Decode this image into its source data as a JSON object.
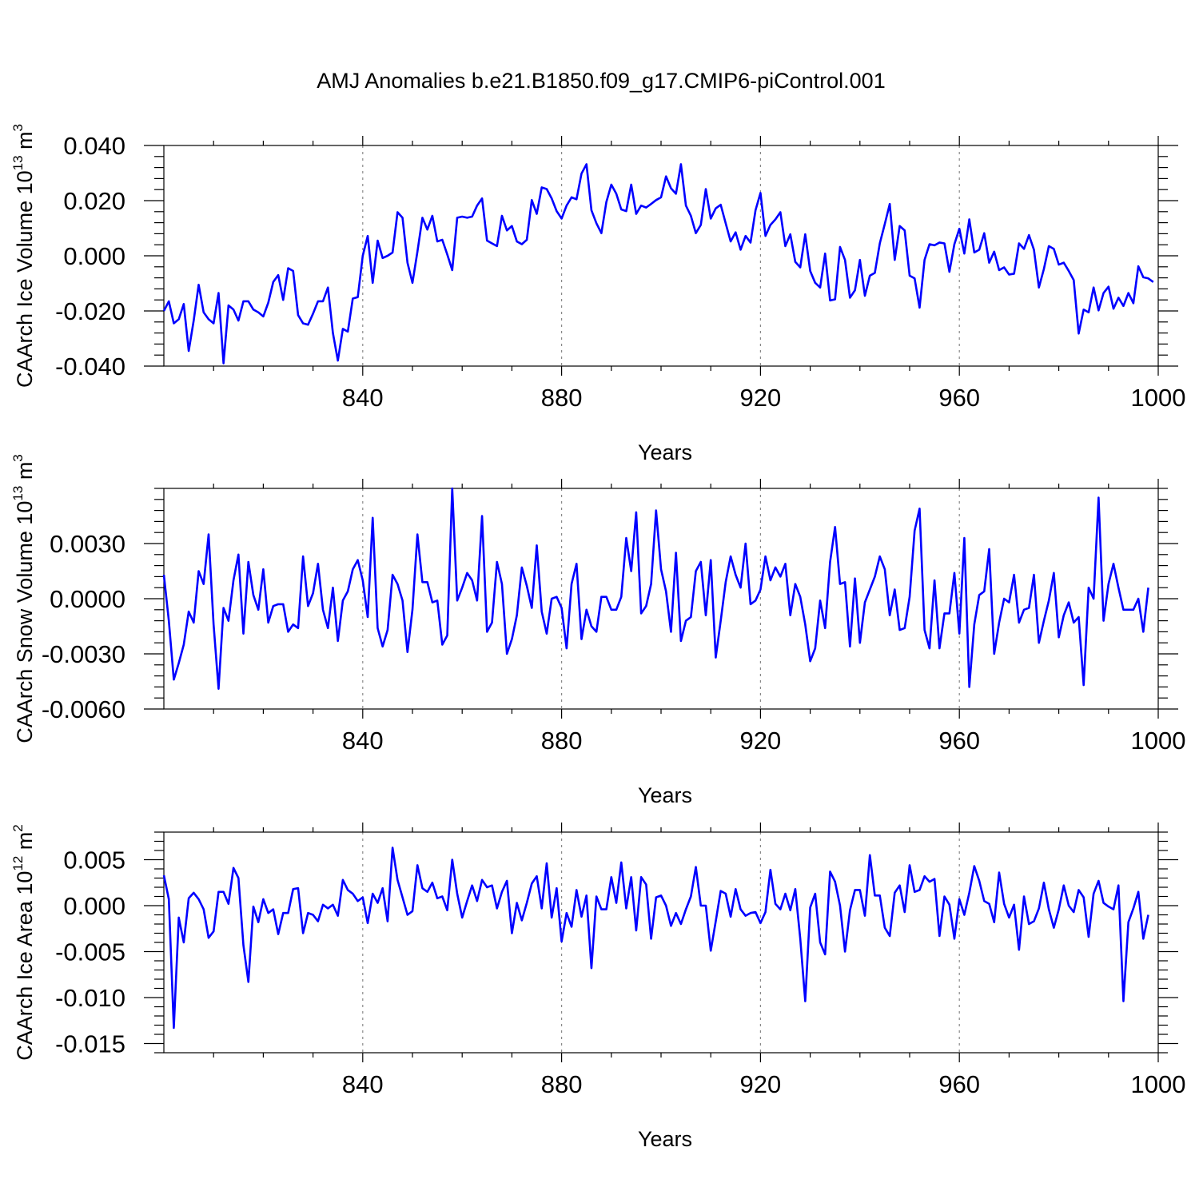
{
  "title": "AMJ Anomalies b.e21.B1850.f09_g17.CMIP6-piControl.001",
  "colors": {
    "line": "#0000ff",
    "axis": "#000000",
    "refline": "#888888"
  },
  "chart_data": [
    {
      "type": "line",
      "ylabel": "CAArch Ice Volume 10",
      "ylabel_sup": "13",
      "ylabel_unit": " m",
      "ylabel_unit_sup": "3",
      "xlabel": "Years",
      "xlim": [
        800,
        1000
      ],
      "ylim": [
        -0.04,
        0.04
      ],
      "x_ticks": [
        840,
        880,
        920,
        960,
        1000
      ],
      "x_tick_labels": [
        "840",
        "880",
        "920",
        "960",
        "1000"
      ],
      "y_ticks": [
        -0.04,
        -0.02,
        0.0,
        0.02,
        0.04
      ],
      "y_tick_labels": [
        "-0.040",
        "-0.020",
        "0.000",
        "0.020",
        "0.040"
      ],
      "ref_lines_x": [
        840,
        880,
        920,
        960
      ],
      "series": [
        {
          "x_start": 800,
          "values": [
            -0.02,
            -0.0165,
            -0.0245,
            -0.023,
            -0.0175,
            -0.0345,
            -0.0235,
            -0.0105,
            -0.0205,
            -0.023,
            -0.0245,
            -0.0135,
            -0.039,
            -0.018,
            -0.0195,
            -0.0235,
            -0.0165,
            -0.0165,
            -0.0195,
            -0.0205,
            -0.022,
            -0.017,
            -0.0095,
            -0.007,
            -0.016,
            -0.0045,
            -0.0055,
            -0.0215,
            -0.0245,
            -0.025,
            -0.021,
            -0.0165,
            -0.0165,
            -0.0115,
            -0.028,
            -0.038,
            -0.0265,
            -0.0275,
            -0.0155,
            -0.015,
            0.0,
            0.0072,
            -0.0098,
            0.0055,
            -0.0008,
            0.0,
            0.0012,
            0.0158,
            0.0138,
            -0.0025,
            -0.0098,
            0.0015,
            0.0138,
            0.0095,
            0.0145,
            0.0052,
            0.0058,
            0.0005,
            -0.0052,
            0.0138,
            0.0142,
            0.0138,
            0.0142,
            0.0182,
            0.0208,
            0.0055,
            0.0045,
            0.0035,
            0.0145,
            0.0092,
            0.0108,
            0.0052,
            0.0042,
            0.0058,
            0.0202,
            0.0152,
            0.0248,
            0.0242,
            0.0208,
            0.0162,
            0.0135,
            0.0182,
            0.0212,
            0.0205,
            0.0298,
            0.0332,
            0.0165,
            0.0118,
            0.0082,
            0.0195,
            0.0258,
            0.0225,
            0.0168,
            0.0162,
            0.0258,
            0.0152,
            0.0182,
            0.0175,
            0.0188,
            0.0202,
            0.0212,
            0.0288,
            0.0245,
            0.0225,
            0.0332,
            0.0182,
            0.0145,
            0.0082,
            0.0112,
            0.0242,
            0.0135,
            0.0172,
            0.0185,
            0.0118,
            0.0052,
            0.0085,
            0.0022,
            0.0072,
            0.0048,
            0.0165,
            0.0228,
            0.0072,
            0.0112,
            0.0132,
            0.0158,
            0.0035,
            0.0078,
            -0.0022,
            -0.0042,
            0.0078,
            -0.0055,
            -0.0098,
            -0.0115,
            0.0008,
            -0.0162,
            -0.0158,
            0.0032,
            -0.0015,
            -0.0152,
            -0.0125,
            -0.0015,
            -0.0145,
            -0.0072,
            -0.0062,
            0.0045,
            0.0115,
            0.0188,
            -0.0015,
            0.0108,
            0.0092,
            -0.0072,
            -0.0082,
            -0.0188,
            -0.0015,
            0.0042,
            0.0038,
            0.0048,
            0.0045,
            -0.0058,
            0.0042,
            0.0098,
            0.0008,
            0.0132,
            0.0012,
            0.0022,
            0.0082,
            -0.0025,
            0.0015,
            -0.0052,
            -0.0042,
            -0.0068,
            -0.0065,
            0.0045,
            0.0025,
            0.0075,
            0.0022,
            -0.0115,
            -0.0048,
            0.0035,
            0.0025,
            -0.0032,
            -0.0025,
            -0.0055,
            -0.0088,
            -0.0282,
            -0.0195,
            -0.0205,
            -0.0115,
            -0.0198,
            -0.0135,
            -0.0112,
            -0.0192,
            -0.0152,
            -0.0182,
            -0.0135,
            -0.0172,
            -0.0038,
            -0.0078,
            -0.0082,
            -0.0095
          ]
        }
      ]
    },
    {
      "type": "line",
      "ylabel": "CAArch Snow Volume 10",
      "ylabel_sup": "13",
      "ylabel_unit": " m",
      "ylabel_unit_sup": "3",
      "xlabel": "Years",
      "xlim": [
        800,
        1000
      ],
      "ylim": [
        -0.006,
        0.006
      ],
      "x_ticks": [
        840,
        880,
        920,
        960,
        1000
      ],
      "x_tick_labels": [
        "840",
        "880",
        "920",
        "960",
        "1000"
      ],
      "y_ticks": [
        -0.006,
        -0.003,
        0.0,
        0.003
      ],
      "y_tick_labels": [
        "-0.0060",
        "-0.0030",
        "0.0000",
        "0.0030"
      ],
      "ref_lines_x": [
        840,
        880,
        920,
        960
      ],
      "series": [
        {
          "x_start": 800,
          "values": [
            0.0013,
            -0.0012,
            -0.0044,
            -0.0035,
            -0.0025,
            -0.0007,
            -0.0013,
            0.0015,
            0.0008,
            0.0035,
            -0.0014,
            -0.0049,
            -0.0005,
            -0.0012,
            0.001,
            0.0024,
            -0.0019,
            0.002,
            0.0002,
            -0.0006,
            0.0016,
            -0.0013,
            -0.0004,
            -0.0003,
            -0.0003,
            -0.0018,
            -0.0014,
            -0.0016,
            0.0023,
            -0.0004,
            0.0003,
            0.0019,
            -0.0006,
            -0.0016,
            0.0006,
            -0.0023,
            -0.0001,
            0.0004,
            0.0016,
            0.0021,
            0.001,
            -0.001,
            0.0044,
            -0.0016,
            -0.0026,
            -0.0017,
            0.0013,
            0.0008,
            -0.0001,
            -0.0029,
            -0.0006,
            0.0035,
            0.0009,
            0.0009,
            -0.0002,
            -0.0001,
            -0.0025,
            -0.002,
            0.006,
            -0.0001,
            0.0006,
            0.0014,
            0.001,
            -0.0001,
            0.0045,
            -0.0018,
            -0.0013,
            0.002,
            0.0008,
            -0.003,
            -0.0022,
            -0.0009,
            0.0017,
            0.0007,
            -0.0005,
            0.0029,
            -0.0007,
            -0.0019,
            0.0,
            0.0001,
            -0.0005,
            -0.0027,
            0.0008,
            0.0019,
            -0.0022,
            -0.0006,
            -0.0015,
            -0.0018,
            0.0001,
            0.0001,
            -0.0006,
            -0.0006,
            0.0001,
            0.0033,
            0.0015,
            0.0047,
            -0.0008,
            -0.0004,
            0.0008,
            0.0048,
            0.0016,
            0.0004,
            -0.0018,
            0.0025,
            -0.0023,
            -0.0012,
            -0.001,
            0.0015,
            0.002,
            -0.0009,
            0.0021,
            -0.0032,
            -0.0012,
            0.0009,
            0.0023,
            0.0013,
            0.0006,
            0.003,
            -0.0003,
            -0.0001,
            0.0005,
            0.0023,
            0.001,
            0.0017,
            0.0012,
            0.0019,
            -0.0009,
            0.0008,
            0.0001,
            -0.0014,
            -0.0034,
            -0.0027,
            -0.0001,
            -0.0016,
            0.002,
            0.0039,
            0.0008,
            0.0009,
            -0.0026,
            0.0011,
            -0.0024,
            -0.0002,
            0.0005,
            0.0012,
            0.0023,
            0.0016,
            -0.0009,
            0.0005,
            -0.0017,
            -0.0016,
            0.0001,
            0.0037,
            0.0049,
            -0.0017,
            -0.0027,
            0.001,
            -0.0027,
            -0.0008,
            -0.0008,
            0.0014,
            -0.0019,
            0.0033,
            -0.0048,
            -0.0014,
            0.0002,
            0.0004,
            0.0027,
            -0.003,
            -0.0013,
            0.0,
            -0.0002,
            0.0013,
            -0.0013,
            -0.0006,
            -0.0005,
            0.0013,
            -0.0024,
            -0.0012,
            -0.0001,
            0.0014,
            -0.0021,
            -0.0009,
            -0.0002,
            -0.0013,
            -0.001,
            -0.0047,
            0.0006,
            0.0,
            0.0055,
            -0.0012,
            0.0008,
            0.0019,
            0.0006,
            -0.0006,
            -0.0006,
            -0.0006,
            0.0,
            -0.0018,
            0.0006
          ]
        }
      ]
    },
    {
      "type": "line",
      "ylabel": "CAArch Ice Area 10",
      "ylabel_sup": "12",
      "ylabel_unit": " m",
      "ylabel_unit_sup": "2",
      "xlabel": "Years",
      "xlim": [
        800,
        1000
      ],
      "ylim": [
        -0.016,
        0.008
      ],
      "x_ticks": [
        840,
        880,
        920,
        960,
        1000
      ],
      "x_tick_labels": [
        "840",
        "880",
        "920",
        "960",
        "1000"
      ],
      "y_ticks": [
        -0.015,
        -0.01,
        -0.005,
        0.0,
        0.005
      ],
      "y_tick_labels": [
        "-0.015",
        "-0.010",
        "-0.005",
        "0.000",
        "0.005"
      ],
      "ref_lines_x": [
        840,
        880,
        920,
        960
      ],
      "series": [
        {
          "x_start": 800,
          "values": [
            0.0033,
            0.0007,
            -0.0133,
            -0.0013,
            -0.004,
            0.0008,
            0.0014,
            0.0007,
            -0.0004,
            -0.0035,
            -0.0028,
            0.0015,
            0.0015,
            0.0002,
            0.0041,
            0.003,
            -0.0043,
            -0.0083,
            -0.0001,
            -0.0018,
            0.0007,
            -0.0008,
            -0.0004,
            -0.0031,
            -0.0008,
            -0.0008,
            0.0018,
            0.0019,
            -0.003,
            -0.0008,
            -0.001,
            -0.0017,
            0.0001,
            -0.0003,
            0.0001,
            -0.0011,
            0.0028,
            0.0017,
            0.0013,
            0.0005,
            0.0009,
            -0.0019,
            0.0013,
            0.0003,
            0.0019,
            -0.0017,
            0.0063,
            0.0028,
            0.0009,
            -0.001,
            -0.0006,
            0.0044,
            0.0019,
            0.0015,
            0.0025,
            0.0008,
            0.001,
            -0.0005,
            0.005,
            0.0013,
            -0.0013,
            0.0005,
            0.0022,
            0.0005,
            0.0028,
            0.002,
            0.0022,
            -0.0003,
            0.0015,
            0.0027,
            -0.003,
            0.0003,
            -0.0016,
            0.0003,
            0.0024,
            0.0032,
            -0.0003,
            0.0046,
            -0.0013,
            0.0019,
            -0.0039,
            -0.0008,
            -0.0023,
            0.0017,
            -0.0012,
            0.0011,
            -0.0068,
            0.001,
            -0.0004,
            -0.0004,
            0.0031,
            0.0003,
            0.0047,
            -0.0003,
            0.0031,
            -0.0027,
            0.0031,
            0.0023,
            -0.0036,
            0.0009,
            0.0011,
            0.0,
            -0.0022,
            -0.0008,
            -0.002,
            -0.0004,
            0.001,
            0.0042,
            0.0,
            0.0,
            -0.0049,
            -0.0017,
            0.0016,
            0.0013,
            -0.0012,
            0.0018,
            -0.0004,
            -0.0011,
            -0.0008,
            -0.0007,
            -0.0019,
            -0.0007,
            0.0039,
            0.0002,
            -0.0004,
            0.0013,
            -0.0005,
            0.0018,
            -0.0036,
            -0.0104,
            -0.0002,
            0.0013,
            -0.004,
            -0.0053,
            0.0037,
            0.0026,
            0.0,
            -0.005,
            -0.0005,
            0.0017,
            0.0017,
            -0.0011,
            0.0055,
            0.0011,
            0.0011,
            -0.0024,
            -0.0033,
            0.0014,
            0.0022,
            -0.0007,
            0.0044,
            0.0015,
            0.0017,
            0.0032,
            0.0026,
            0.0029,
            -0.0033,
            0.001,
            0.0001,
            -0.0036,
            0.0007,
            -0.001,
            0.0014,
            0.0043,
            0.0027,
            0.0005,
            0.0002,
            -0.0018,
            0.0036,
            0.0002,
            -0.0013,
            0.0001,
            -0.0048,
            0.001,
            -0.002,
            -0.0017,
            -0.0003,
            0.0025,
            -0.0004,
            -0.0024,
            -0.0004,
            0.0022,
            0.0,
            -0.0007,
            0.0017,
            0.0009,
            -0.0034,
            0.0013,
            0.0027,
            0.0003,
            -0.0001,
            -0.0004,
            0.0022,
            -0.0104,
            -0.0018,
            -0.0003,
            0.0015,
            -0.0036,
            -0.001
          ]
        }
      ]
    }
  ]
}
